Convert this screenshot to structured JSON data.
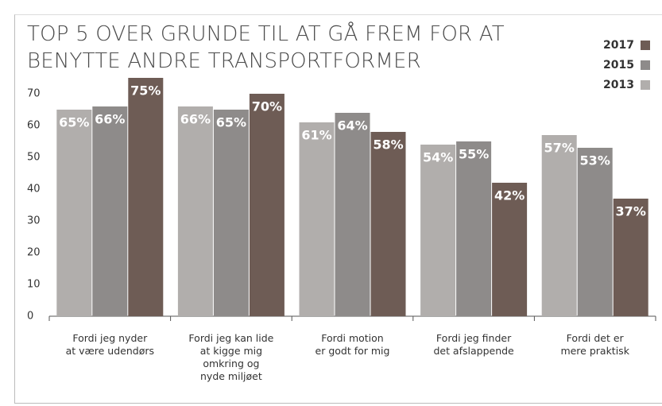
{
  "chart_data": {
    "type": "bar",
    "title": "TOP 5 OVER GRUNDE TIL AT GÅ FREM FOR AT\nBENYTTE ANDRE TRANSPORTFORMER",
    "categories": [
      "Fordi jeg nyder\nat være udendørs",
      "Fordi jeg kan lide\nat kigge mig\nomkring og\nnyde miljøet",
      "Fordi motion\ner godt for mig",
      "Fordi jeg finder\ndet afslappende",
      "Fordi det er\nmere praktisk"
    ],
    "series": [
      {
        "name": "2013",
        "color": "#b1aeac",
        "values": [
          65,
          66,
          61,
          54,
          57
        ],
        "value_labels": [
          "65%",
          "66%",
          "61%",
          "54%",
          "57%"
        ]
      },
      {
        "name": "2015",
        "color": "#8e8b8a",
        "values": [
          66,
          65,
          64,
          55,
          53
        ],
        "value_labels": [
          "66%",
          "65%",
          "64%",
          "55%",
          "53%"
        ]
      },
      {
        "name": "2017",
        "color": "#6e5c55",
        "values": [
          75,
          70,
          58,
          42,
          37
        ],
        "value_labels": [
          "75%",
          "70%",
          "58%",
          "42%",
          "37%"
        ]
      }
    ],
    "ylim": [
      0,
      75
    ],
    "yticks": [
      0,
      10,
      20,
      30,
      40,
      50,
      60,
      70
    ],
    "grid": false,
    "legend": "top-right"
  }
}
